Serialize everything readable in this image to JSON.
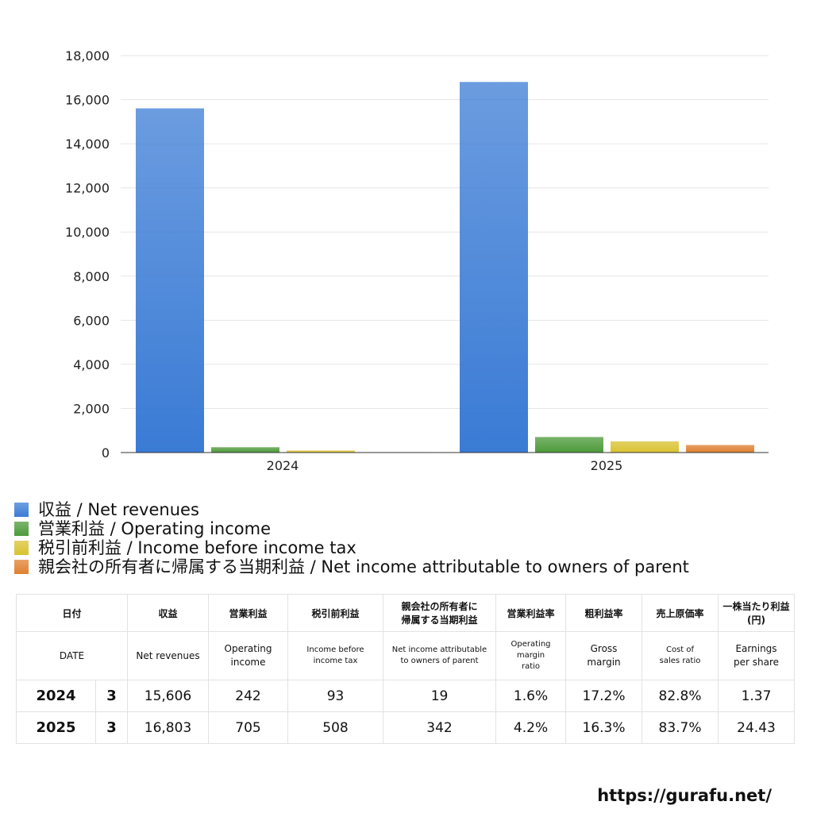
{
  "chart_data": {
    "type": "bar",
    "categories": [
      "2024",
      "2025"
    ],
    "ylim": [
      0,
      18000
    ],
    "yticks": [
      "0",
      "2,000",
      "4,000",
      "6,000",
      "8,000",
      "10,000",
      "12,000",
      "14,000",
      "16,000",
      "18,000"
    ],
    "grid": true,
    "legend_position": "bottom-left",
    "series": [
      {
        "name": "収益 / Net revenues",
        "values": [
          15606,
          16803
        ],
        "color": "#3a7bd5"
      },
      {
        "name": "営業利益 / Operating income",
        "values": [
          242,
          705
        ],
        "color": "#4c9a3a"
      },
      {
        "name": "税引前利益 / Income before income tax",
        "values": [
          93,
          508
        ],
        "color": "#d9c230"
      },
      {
        "name": "親会社の所有者に帰属する当期利益 / Net income attributable to owners of parent",
        "values": [
          19,
          342
        ],
        "color": "#e07f2f"
      }
    ]
  },
  "table": {
    "header_ja": [
      "日付",
      "",
      "収益",
      "営業利益",
      "税引前利益",
      "親会社の所有者に\n帰属する当期利益",
      "営業利益率",
      "粗利益率",
      "売上原価率",
      "一株当たり利益\n(円)"
    ],
    "header_en": [
      "DATE",
      "",
      "Net revenues",
      "Operating\nincome",
      "Income before\nincome tax",
      "Net income attributable\nto owners of parent",
      "Operating\nmargin\nratio",
      "Gross\nmargin",
      "Cost of\nsales ratio",
      "Earnings\nper share"
    ],
    "rows": [
      [
        "2024",
        "3",
        "15,606",
        "242",
        "93",
        "19",
        "1.6%",
        "17.2%",
        "82.8%",
        "1.37"
      ],
      [
        "2025",
        "3",
        "16,803",
        "705",
        "508",
        "342",
        "4.2%",
        "16.3%",
        "83.7%",
        "24.43"
      ]
    ]
  },
  "footer": {
    "url": "https://gurafu.net/"
  }
}
